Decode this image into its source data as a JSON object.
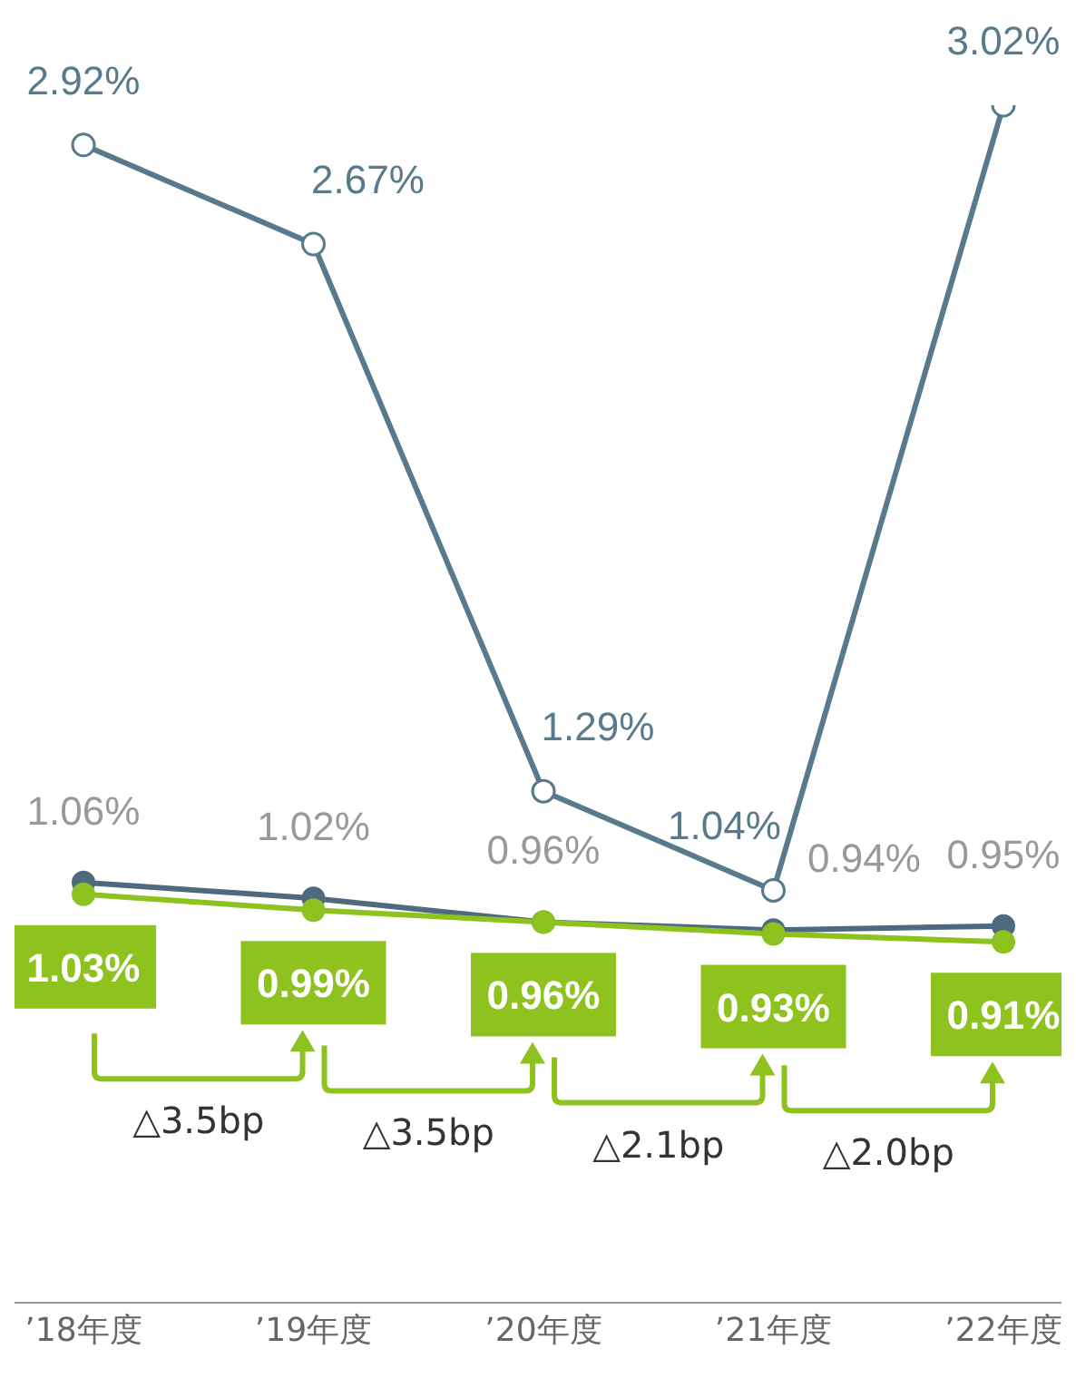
{
  "chart_data": {
    "type": "line",
    "categories": [
      "’18年度",
      "’19年度",
      "’20年度",
      "’21年度",
      "’22年度"
    ],
    "series": [
      {
        "color": "#587a8c",
        "values": [
          2.92,
          2.67,
          1.29,
          1.04,
          3.02
        ],
        "value_labels": [
          "2.92%",
          "2.67%",
          "1.29%",
          "1.04%",
          "3.02%"
        ]
      },
      {
        "color": "#4f6a7e",
        "values": [
          1.06,
          1.02,
          0.96,
          0.94,
          0.95
        ],
        "value_labels": [
          "1.06%",
          "1.02%",
          "0.96%",
          "0.94%",
          "0.95%"
        ]
      },
      {
        "color": "#8dc21f",
        "values": [
          1.03,
          0.99,
          0.96,
          0.93,
          0.91
        ],
        "value_labels": [
          "1.03%",
          "0.99%",
          "0.96%",
          "0.93%",
          "0.91%"
        ]
      }
    ],
    "annotations": [
      "△3.5bp",
      "△3.5bp",
      "△2.1bp",
      "△2.0bp"
    ],
    "marker": "circle",
    "grid": false,
    "legend": false
  }
}
